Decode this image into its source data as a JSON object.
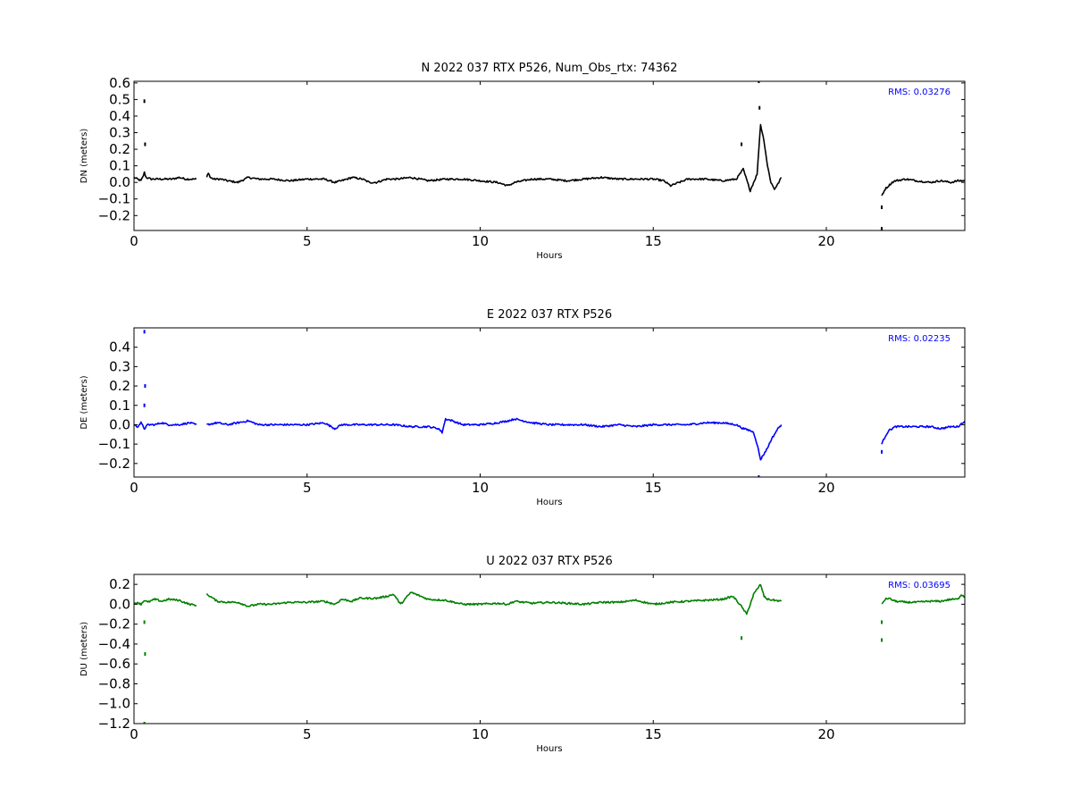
{
  "chart_data": [
    {
      "type": "line",
      "title": "N 2022 037 RTX  P526, Num_Obs_rtx: 74362",
      "xlabel": "Hours",
      "ylabel": "DN (meters)",
      "xlim": [
        0,
        24
      ],
      "ylim": [
        -0.29,
        0.61
      ],
      "xticks": [
        "0",
        "5",
        "10",
        "15",
        "20"
      ],
      "yticks": [
        "0.6",
        "0.5",
        "0.4",
        "0.3",
        "0.2",
        "0.1",
        "0.0",
        "−0.1",
        "−0.2"
      ],
      "ytick_values": [
        0.6,
        0.5,
        0.4,
        0.3,
        0.2,
        0.1,
        0.0,
        -0.1,
        -0.2
      ],
      "rms_text": "RMS:  0.03276",
      "rms_color": "#0000ff",
      "color": "#000000",
      "grid": false,
      "series": [
        {
          "segments": [
            {
              "x": [
                0.0,
                0.1,
                0.2,
                0.25,
                0.3,
                0.35,
                0.5,
                0.7,
                0.9,
                1.1,
                1.3,
                1.5,
                1.7,
                1.8
              ],
              "y": [
                0.03,
                0.02,
                0.01,
                0.03,
                0.06,
                0.03,
                0.02,
                0.02,
                0.02,
                0.02,
                0.03,
                0.02,
                0.02,
                0.02
              ]
            },
            {
              "x": [
                2.1,
                2.15,
                2.2,
                2.3,
                2.5,
                2.7,
                3.0,
                3.3,
                3.6,
                4.0,
                4.5,
                5.0,
                5.5,
                5.8,
                6.0,
                6.3,
                6.6,
                6.8,
                7.0,
                7.3,
                7.6,
                8.0,
                8.5,
                9.0,
                9.5,
                10.0,
                10.5,
                10.8,
                11.0,
                11.5,
                12.0,
                12.5,
                13.0,
                13.5,
                14.0,
                14.5,
                15.0,
                15.3,
                15.5,
                16.0,
                16.5,
                17.0,
                17.4,
                17.6,
                17.8,
                17.9,
                18.0,
                18.1,
                18.2,
                18.3,
                18.4,
                18.5,
                18.6,
                18.7
              ],
              "y": [
                0.03,
                0.06,
                0.03,
                0.02,
                0.02,
                0.01,
                0.0,
                0.03,
                0.02,
                0.02,
                0.01,
                0.02,
                0.02,
                0.0,
                0.01,
                0.03,
                0.02,
                0.0,
                0.0,
                0.02,
                0.02,
                0.03,
                0.01,
                0.02,
                0.02,
                0.01,
                0.0,
                -0.02,
                0.0,
                0.02,
                0.02,
                0.01,
                0.02,
                0.03,
                0.02,
                0.02,
                0.02,
                0.01,
                -0.02,
                0.02,
                0.02,
                0.01,
                0.02,
                0.08,
                -0.05,
                0.0,
                0.05,
                0.35,
                0.25,
                0.1,
                0.0,
                -0.04,
                -0.01,
                0.03
              ]
            },
            {
              "x": [
                21.6,
                21.65,
                21.7,
                21.8,
                21.9,
                22.0,
                22.3,
                22.6,
                23.0,
                23.3,
                23.6,
                23.8,
                24.0
              ],
              "y": [
                -0.08,
                -0.06,
                -0.04,
                -0.02,
                0.0,
                0.01,
                0.02,
                0.01,
                0.0,
                0.01,
                0.0,
                0.01,
                0.01
              ]
            }
          ],
          "spikes": [
            {
              "x": 0.3,
              "y": 0.49
            },
            {
              "x": 0.32,
              "y": 0.23
            },
            {
              "x": 17.55,
              "y": 0.23
            },
            {
              "x": 18.05,
              "y": 0.61
            },
            {
              "x": 18.07,
              "y": 0.45
            },
            {
              "x": 21.6,
              "y": -0.15
            },
            {
              "x": 21.6,
              "y": -0.28
            }
          ]
        }
      ]
    },
    {
      "type": "line",
      "title": "E 2022 037 RTX  P526",
      "xlabel": "Hours",
      "ylabel": "DE (meters)",
      "xlim": [
        0,
        24
      ],
      "ylim": [
        -0.27,
        0.5
      ],
      "xticks": [
        "0",
        "5",
        "10",
        "15",
        "20"
      ],
      "yticks": [
        "0.4",
        "0.3",
        "0.2",
        "0.1",
        "0.0",
        "−0.1",
        "−0.2"
      ],
      "ytick_values": [
        0.4,
        0.3,
        0.2,
        0.1,
        0.0,
        -0.1,
        -0.2
      ],
      "rms_text": "RMS:  0.02235",
      "rms_color": "#0000ff",
      "color": "#0000ff",
      "grid": false,
      "series": [
        {
          "segments": [
            {
              "x": [
                0.0,
                0.1,
                0.2,
                0.3,
                0.4,
                0.6,
                0.8,
                1.0,
                1.3,
                1.6,
                1.8
              ],
              "y": [
                0.0,
                -0.01,
                0.01,
                -0.02,
                0.0,
                0.0,
                0.01,
                0.0,
                0.0,
                0.01,
                0.0
              ]
            },
            {
              "x": [
                2.1,
                2.4,
                2.7,
                3.0,
                3.3,
                3.6,
                4.0,
                4.5,
                5.0,
                5.5,
                5.8,
                6.0,
                6.5,
                7.0,
                7.5,
                8.0,
                8.5,
                8.8,
                8.9,
                9.0,
                9.2,
                9.5,
                10.0,
                10.5,
                10.8,
                11.0,
                11.5,
                12.0,
                12.5,
                13.0,
                13.5,
                14.0,
                14.5,
                15.0,
                15.5,
                16.0,
                16.5,
                17.0,
                17.4,
                17.6,
                17.8,
                17.9,
                18.0,
                18.1,
                18.2,
                18.3,
                18.4,
                18.5,
                18.6,
                18.7
              ],
              "y": [
                0.0,
                0.01,
                0.0,
                0.01,
                0.02,
                0.0,
                0.0,
                0.0,
                0.0,
                0.01,
                -0.02,
                0.0,
                0.0,
                0.0,
                0.0,
                -0.01,
                -0.01,
                -0.02,
                -0.04,
                0.03,
                0.02,
                0.0,
                0.0,
                0.01,
                0.02,
                0.03,
                0.01,
                0.0,
                0.0,
                0.0,
                -0.01,
                0.0,
                -0.01,
                0.0,
                0.0,
                0.0,
                0.01,
                0.01,
                0.0,
                -0.02,
                -0.03,
                -0.04,
                -0.1,
                -0.18,
                -0.15,
                -0.12,
                -0.08,
                -0.05,
                -0.02,
                0.0
              ]
            },
            {
              "x": [
                21.6,
                21.65,
                21.7,
                21.8,
                22.0,
                22.3,
                22.6,
                23.0,
                23.3,
                23.6,
                23.8,
                24.0
              ],
              "y": [
                -0.1,
                -0.08,
                -0.06,
                -0.03,
                -0.01,
                -0.01,
                -0.01,
                -0.01,
                -0.02,
                -0.01,
                -0.01,
                0.02
              ]
            }
          ],
          "spikes": [
            {
              "x": 0.3,
              "y": 0.48
            },
            {
              "x": 0.32,
              "y": 0.2
            },
            {
              "x": 0.3,
              "y": 0.1
            },
            {
              "x": 18.05,
              "y": -0.27
            },
            {
              "x": 21.6,
              "y": -0.14
            }
          ]
        }
      ]
    },
    {
      "type": "line",
      "title": "U 2022 037 RTX  P526",
      "xlabel": "Hours",
      "ylabel": "DU (meters)",
      "xlim": [
        0,
        24
      ],
      "ylim": [
        -1.2,
        0.3
      ],
      "xticks": [
        "0",
        "5",
        "10",
        "15",
        "20"
      ],
      "yticks": [
        "0.2",
        "0.0",
        "−0.2",
        "−0.4",
        "−0.6",
        "−0.8",
        "−1.0",
        "−1.2"
      ],
      "ytick_values": [
        0.2,
        0.0,
        -0.2,
        -0.4,
        -0.6,
        -0.8,
        -1.0,
        -1.2
      ],
      "rms_text": "RMS:  0.03695",
      "rms_color": "#0000ff",
      "color": "#008000",
      "grid": false,
      "series": [
        {
          "segments": [
            {
              "x": [
                0.0,
                0.1,
                0.2,
                0.3,
                0.4,
                0.6,
                0.8,
                1.0,
                1.3,
                1.6,
                1.8
              ],
              "y": [
                0.0,
                0.02,
                0.0,
                0.04,
                0.02,
                0.05,
                0.03,
                0.05,
                0.04,
                0.0,
                -0.01
              ]
            },
            {
              "x": [
                2.1,
                2.2,
                2.4,
                2.7,
                3.0,
                3.3,
                3.6,
                4.0,
                4.5,
                5.0,
                5.5,
                5.8,
                6.0,
                6.3,
                6.5,
                7.0,
                7.3,
                7.5,
                7.7,
                8.0,
                8.5,
                9.0,
                9.5,
                10.0,
                10.5,
                10.8,
                11.0,
                11.5,
                12.0,
                12.5,
                13.0,
                13.5,
                14.0,
                14.5,
                15.0,
                15.5,
                16.0,
                16.5,
                17.0,
                17.3,
                17.5,
                17.6,
                17.7,
                17.8,
                17.9,
                18.0,
                18.1,
                18.2,
                18.3,
                18.5,
                18.7
              ],
              "y": [
                0.1,
                0.08,
                0.03,
                0.02,
                0.02,
                -0.02,
                0.0,
                0.0,
                0.02,
                0.02,
                0.03,
                0.0,
                0.05,
                0.03,
                0.06,
                0.06,
                0.08,
                0.1,
                0.0,
                0.12,
                0.05,
                0.04,
                0.0,
                0.0,
                0.01,
                0.0,
                0.03,
                0.01,
                0.02,
                0.01,
                0.0,
                0.02,
                0.02,
                0.04,
                0.0,
                0.02,
                0.03,
                0.04,
                0.05,
                0.08,
                0.0,
                -0.05,
                -0.1,
                0.0,
                0.1,
                0.15,
                0.2,
                0.08,
                0.05,
                0.04,
                0.03
              ]
            },
            {
              "x": [
                21.6,
                21.7,
                21.8,
                22.0,
                22.3,
                22.6,
                23.0,
                23.3,
                23.6,
                23.8,
                23.9,
                24.0
              ],
              "y": [
                0.0,
                0.05,
                0.06,
                0.03,
                0.02,
                0.02,
                0.03,
                0.03,
                0.05,
                0.05,
                0.1,
                0.07
              ]
            }
          ],
          "spikes": [
            {
              "x": 0.3,
              "y": -0.18
            },
            {
              "x": 0.32,
              "y": -0.5
            },
            {
              "x": 0.3,
              "y": -1.2
            },
            {
              "x": 17.55,
              "y": -0.34
            },
            {
              "x": 21.6,
              "y": -0.36
            },
            {
              "x": 21.6,
              "y": -0.18
            }
          ]
        }
      ]
    }
  ]
}
